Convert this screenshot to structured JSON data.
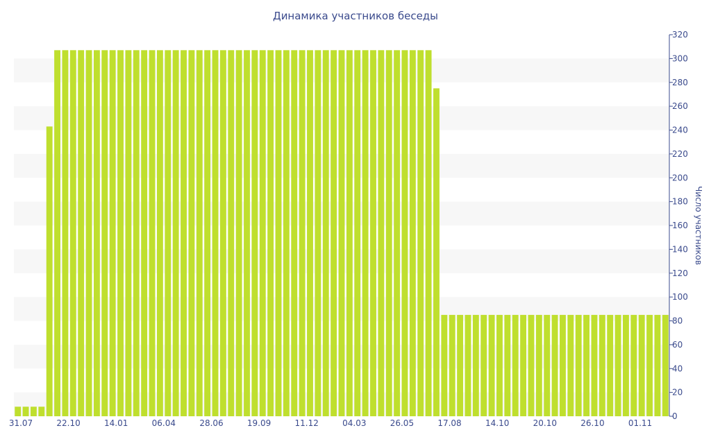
{
  "chart_data": {
    "type": "bar",
    "title": "Динамика участников беседы",
    "xlabel": "",
    "ylabel": "Число участников",
    "y_axis_side": "right",
    "ylim": [
      0,
      320
    ],
    "yticks": [
      0,
      20,
      40,
      60,
      80,
      100,
      120,
      140,
      160,
      180,
      200,
      220,
      240,
      260,
      280,
      300,
      320
    ],
    "xtick_labels": [
      "31.07",
      "22.10",
      "14.01",
      "06.04",
      "28.06",
      "19.09",
      "11.12",
      "04.03",
      "26.05",
      "17.08",
      "14.10",
      "20.10",
      "26.10",
      "01.11"
    ],
    "grid": "alternating horizontal bands",
    "bar_color": "#bfdf2e",
    "band_color": "#f7f7f7",
    "text_color": "#3a4a8c",
    "values": [
      8,
      8,
      8,
      8,
      243,
      307,
      307,
      307,
      307,
      307,
      307,
      307,
      307,
      307,
      307,
      307,
      307,
      307,
      307,
      307,
      307,
      307,
      307,
      307,
      307,
      307,
      307,
      307,
      307,
      307,
      307,
      307,
      307,
      307,
      307,
      307,
      307,
      307,
      307,
      307,
      307,
      307,
      307,
      307,
      307,
      307,
      307,
      307,
      307,
      307,
      307,
      307,
      307,
      275,
      85,
      85,
      85,
      85,
      85,
      85,
      85,
      85,
      85,
      85,
      85,
      85,
      85,
      85,
      85,
      85,
      85,
      85,
      85,
      85,
      85,
      85,
      85,
      85,
      85,
      85,
      85,
      85,
      85
    ]
  }
}
